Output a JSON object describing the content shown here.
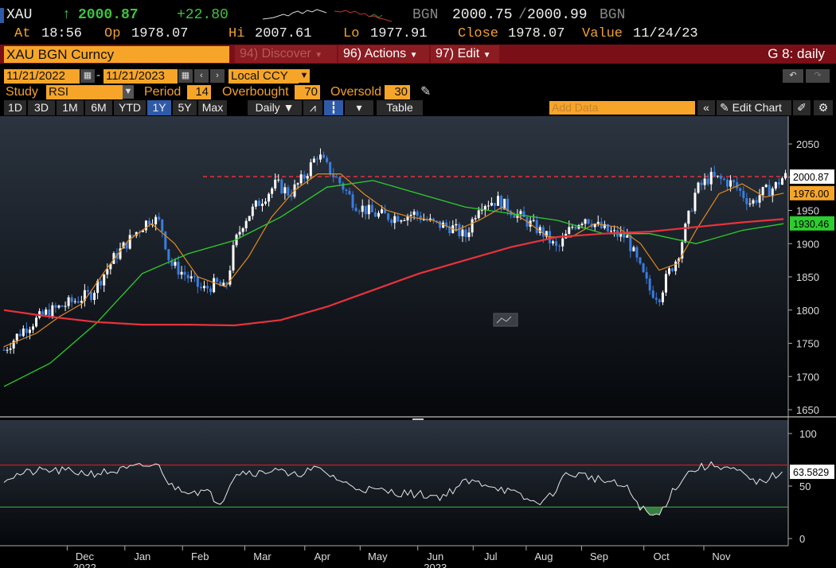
{
  "quote": {
    "ticker": "XAU",
    "arrow": "↑",
    "last": "2000.87",
    "change": "+22.80",
    "bid_src": "BGN",
    "bid": "2000.75",
    "ask": "2000.99",
    "ask_src": "BGN",
    "at_label": "At",
    "at": "18:56",
    "op_label": "Op",
    "op": "1978.07",
    "hi_label": "Hi",
    "hi": "2007.61",
    "lo_label": "Lo",
    "lo": "1977.91",
    "close_label": "Close",
    "close": "1978.07",
    "value_label": "Value",
    "value": "11/24/23"
  },
  "titlebar": {
    "security": "XAU BGN Curncy",
    "discover": "94) Discover",
    "actions": "96) Actions",
    "edit": "97) Edit",
    "chart_name": "G 8: daily"
  },
  "controls": {
    "start_date": "11/21/2022",
    "dash": "-",
    "end_date": "11/21/2023",
    "currency": "Local CCY",
    "study_label": "Study",
    "study": "RSI",
    "period_label": "Period",
    "period": "14",
    "overbought_label": "Overbought",
    "overbought": "70",
    "oversold_label": "Oversold",
    "oversold": "30",
    "ranges": [
      "1D",
      "3D",
      "1M",
      "6M",
      "YTD",
      "1Y",
      "5Y",
      "Max"
    ],
    "selected_range": "1Y",
    "frequency": "Daily",
    "table_label": "Table",
    "add_data_placeholder": "Add Data",
    "edit_chart": "Edit Chart"
  },
  "colors": {
    "up_candle": "#ffffff",
    "down_candle": "#3a7de0",
    "ma_short": "#e08a1e",
    "ma_mid": "#2ecc2e",
    "ma_long": "#e8323c",
    "ref_line": "#e8323c",
    "rsi_line": "#e6e6e6",
    "rsi_overbought": "#e02020",
    "rsi_oversold": "#3cb83c",
    "badge_price": "#ffffff",
    "badge_short": "#f7a529",
    "badge_mid": "#2ecc2e"
  },
  "chart_data": [
    {
      "type": "candlestick",
      "title": "",
      "x_labels": [
        "Dec",
        "Jan",
        "Feb",
        "Mar",
        "Apr",
        "May",
        "Jun",
        "Jul",
        "Aug",
        "Sep",
        "Oct",
        "Nov"
      ],
      "year_labels": [
        "2022",
        "2023"
      ],
      "ylim": [
        1640,
        2100
      ],
      "yticks": [
        1650,
        1700,
        1750,
        1800,
        1850,
        1900,
        1950,
        2000,
        2050
      ],
      "grid": false,
      "price_path": [
        [
          0,
          1740
        ],
        [
          8,
          1770
        ],
        [
          18,
          1795
        ],
        [
          28,
          1810
        ],
        [
          38,
          1825
        ],
        [
          48,
          1880
        ],
        [
          58,
          1920
        ],
        [
          64,
          1940
        ],
        [
          68,
          1930
        ],
        [
          72,
          1870
        ],
        [
          78,
          1855
        ],
        [
          86,
          1830
        ],
        [
          92,
          1840
        ],
        [
          96,
          1830
        ],
        [
          100,
          1900
        ],
        [
          104,
          1935
        ],
        [
          110,
          1960
        ],
        [
          118,
          1990
        ],
        [
          124,
          1975
        ],
        [
          130,
          2000
        ],
        [
          136,
          2035
        ],
        [
          140,
          2015
        ],
        [
          146,
          1990
        ],
        [
          152,
          1960
        ],
        [
          160,
          1945
        ],
        [
          168,
          1940
        ],
        [
          178,
          1945
        ],
        [
          186,
          1930
        ],
        [
          194,
          1925
        ],
        [
          200,
          1910
        ],
        [
          206,
          1960
        ],
        [
          214,
          1965
        ],
        [
          220,
          1950
        ],
        [
          228,
          1930
        ],
        [
          234,
          1915
        ],
        [
          240,
          1890
        ],
        [
          246,
          1925
        ],
        [
          252,
          1940
        ],
        [
          258,
          1925
        ],
        [
          264,
          1915
        ],
        [
          270,
          1910
        ],
        [
          276,
          1860
        ],
        [
          280,
          1830
        ],
        [
          284,
          1820
        ],
        [
          288,
          1855
        ],
        [
          292,
          1880
        ],
        [
          296,
          1930
        ],
        [
          300,
          1980
        ],
        [
          306,
          2000
        ],
        [
          312,
          1995
        ],
        [
          316,
          1990
        ],
        [
          320,
          1975
        ],
        [
          324,
          1960
        ],
        [
          328,
          1975
        ],
        [
          334,
          1985
        ],
        [
          338,
          2000.87
        ]
      ],
      "series": [
        {
          "name": "",
          "type": "line",
          "values": [
            [
              0,
              1745
            ],
            [
              14,
              1765
            ],
            [
              24,
              1790
            ],
            [
              34,
              1810
            ],
            [
              44,
              1860
            ],
            [
              54,
              1905
            ],
            [
              64,
              1930
            ],
            [
              74,
              1900
            ],
            [
              84,
              1850
            ],
            [
              96,
              1835
            ],
            [
              106,
              1880
            ],
            [
              116,
              1940
            ],
            [
              126,
              1980
            ],
            [
              136,
              2005
            ],
            [
              146,
              2005
            ],
            [
              156,
              1975
            ],
            [
              166,
              1950
            ],
            [
              176,
              1940
            ],
            [
              186,
              1935
            ],
            [
              196,
              1920
            ],
            [
              206,
              1935
            ],
            [
              216,
              1955
            ],
            [
              226,
              1935
            ],
            [
              236,
              1910
            ],
            [
              246,
              1910
            ],
            [
              256,
              1930
            ],
            [
              266,
              1925
            ],
            [
              276,
              1900
            ],
            [
              284,
              1860
            ],
            [
              292,
              1870
            ],
            [
              300,
              1920
            ],
            [
              310,
              1975
            ],
            [
              320,
              1990
            ],
            [
              330,
              1970
            ],
            [
              338,
              1976
            ]
          ]
        },
        {
          "name": "",
          "type": "line",
          "values": [
            [
              0,
              1685
            ],
            [
              20,
              1720
            ],
            [
              40,
              1780
            ],
            [
              60,
              1855
            ],
            [
              80,
              1885
            ],
            [
              100,
              1905
            ],
            [
              120,
              1940
            ],
            [
              140,
              1985
            ],
            [
              160,
              1995
            ],
            [
              180,
              1975
            ],
            [
              200,
              1955
            ],
            [
              220,
              1945
            ],
            [
              240,
              1935
            ],
            [
              260,
              1915
            ],
            [
              280,
              1915
            ],
            [
              300,
              1900
            ],
            [
              320,
              1920
            ],
            [
              338,
              1930
            ]
          ]
        },
        {
          "name": "",
          "type": "line",
          "values": [
            [
              0,
              1800
            ],
            [
              20,
              1790
            ],
            [
              40,
              1782
            ],
            [
              60,
              1778
            ],
            [
              80,
              1778
            ],
            [
              100,
              1777
            ],
            [
              120,
              1785
            ],
            [
              140,
              1805
            ],
            [
              160,
              1830
            ],
            [
              180,
              1855
            ],
            [
              200,
              1875
            ],
            [
              220,
              1895
            ],
            [
              240,
              1910
            ],
            [
              260,
              1915
            ],
            [
              280,
              1918
            ],
            [
              300,
              1925
            ],
            [
              320,
              1932
            ],
            [
              338,
              1937
            ]
          ]
        }
      ],
      "reference_line": 2000.87,
      "badges": [
        "2000.87",
        "1976.00",
        "1930.46"
      ]
    },
    {
      "type": "line",
      "title": "",
      "ylim": [
        0,
        100
      ],
      "yticks": [
        0,
        50,
        100
      ],
      "overbought": 70,
      "oversold": 30,
      "series": [
        {
          "name": "",
          "values": [
            [
              0,
              57
            ],
            [
              8,
              62
            ],
            [
              18,
              65
            ],
            [
              28,
              64
            ],
            [
              38,
              62
            ],
            [
              48,
              64
            ],
            [
              58,
              68
            ],
            [
              64,
              70
            ],
            [
              68,
              68
            ],
            [
              72,
              50
            ],
            [
              80,
              46
            ],
            [
              88,
              44
            ],
            [
              94,
              34
            ],
            [
              100,
              62
            ],
            [
              106,
              64
            ],
            [
              112,
              62
            ],
            [
              118,
              68
            ],
            [
              124,
              58
            ],
            [
              130,
              64
            ],
            [
              136,
              66
            ],
            [
              142,
              60
            ],
            [
              150,
              50
            ],
            [
              160,
              46
            ],
            [
              170,
              44
            ],
            [
              180,
              42
            ],
            [
              190,
              40
            ],
            [
              200,
              54
            ],
            [
              210,
              52
            ],
            [
              220,
              44
            ],
            [
              230,
              34
            ],
            [
              236,
              38
            ],
            [
              244,
              62
            ],
            [
              252,
              60
            ],
            [
              262,
              54
            ],
            [
              270,
              48
            ],
            [
              276,
              30
            ],
            [
              280,
              22
            ],
            [
              284,
              22
            ],
            [
              290,
              46
            ],
            [
              296,
              62
            ],
            [
              302,
              68
            ],
            [
              310,
              70
            ],
            [
              318,
              64
            ],
            [
              326,
              52
            ],
            [
              332,
              58
            ],
            [
              338,
              63.5829
            ]
          ]
        }
      ],
      "badges": [
        "63.5829"
      ]
    }
  ]
}
